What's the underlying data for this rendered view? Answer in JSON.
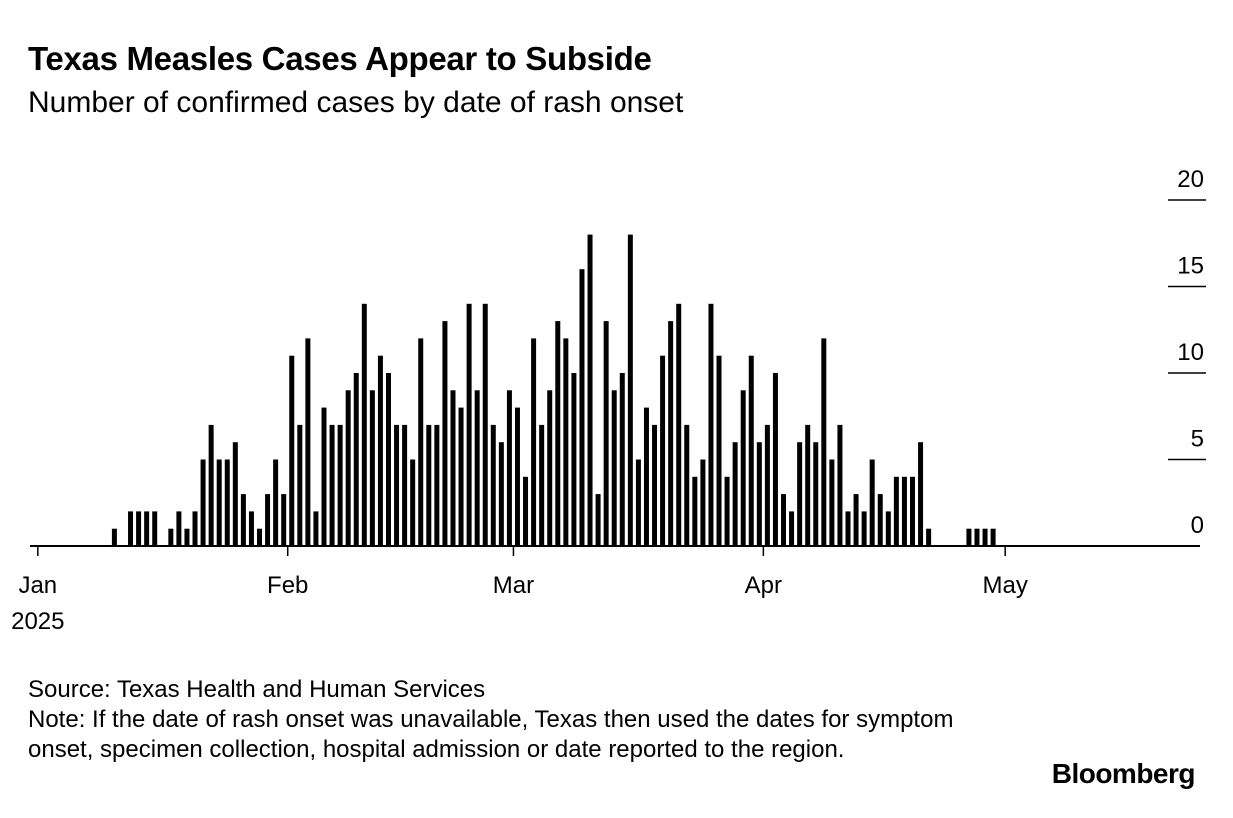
{
  "title": "Texas Measles Cases Appear to Subside",
  "subtitle": "Number of confirmed cases by date of rash onset",
  "source": "Source: Texas Health and Human Services",
  "note": "Note: If the date of rash onset was unavailable, Texas then used the dates for symptom onset, specimen collection, hospital admission or date reported to the region.",
  "brand": "Bloomberg",
  "chart_data": {
    "type": "bar",
    "title": "Texas Measles Cases Appear to Subside",
    "subtitle": "Number of confirmed cases by date of rash onset",
    "xlabel": "",
    "ylabel": "",
    "ylim": [
      0,
      20
    ],
    "yticks": [
      0,
      5,
      10,
      15,
      20
    ],
    "grid": false,
    "x_start": "2025-01-04",
    "x_end": "2025-05-13",
    "x_ticks": [
      {
        "date": "2025-01-01",
        "label": "Jan",
        "sublabel": "2025"
      },
      {
        "date": "2025-02-01",
        "label": "Feb",
        "sublabel": ""
      },
      {
        "date": "2025-03-01",
        "label": "Mar",
        "sublabel": ""
      },
      {
        "date": "2025-04-01",
        "label": "Apr",
        "sublabel": ""
      },
      {
        "date": "2025-05-01",
        "label": "May",
        "sublabel": ""
      }
    ],
    "values": [
      0,
      0,
      0,
      0,
      0,
      0,
      1,
      0,
      2,
      2,
      2,
      2,
      0,
      1,
      2,
      1,
      2,
      5,
      7,
      5,
      5,
      6,
      3,
      2,
      1,
      3,
      5,
      3,
      11,
      7,
      12,
      2,
      8,
      7,
      7,
      9,
      10,
      14,
      9,
      11,
      10,
      7,
      7,
      5,
      12,
      7,
      7,
      13,
      9,
      8,
      14,
      9,
      14,
      7,
      6,
      9,
      8,
      4,
      12,
      7,
      9,
      13,
      12,
      10,
      16,
      18,
      3,
      13,
      9,
      10,
      18,
      5,
      8,
      7,
      11,
      13,
      14,
      7,
      4,
      5,
      14,
      11,
      4,
      6,
      9,
      11,
      6,
      7,
      10,
      3,
      2,
      6,
      7,
      6,
      12,
      5,
      7,
      2,
      3,
      2,
      5,
      3,
      2,
      4,
      4,
      4,
      6,
      1,
      0,
      0,
      0,
      0,
      1,
      1,
      1,
      1,
      0,
      0,
      0,
      0,
      0
    ]
  }
}
